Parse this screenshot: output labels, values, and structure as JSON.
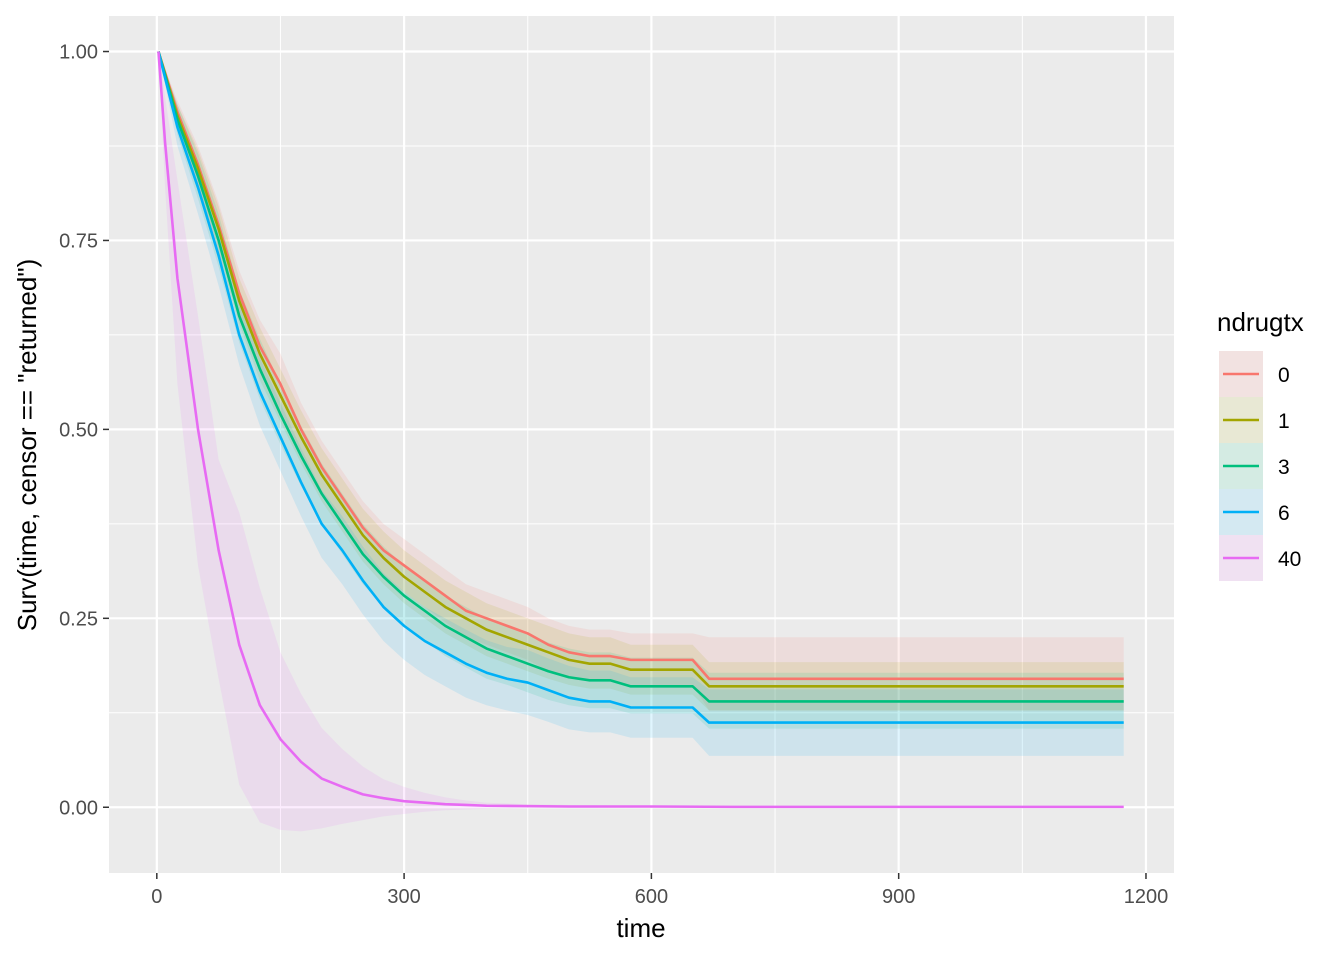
{
  "chart_data": {
    "type": "line",
    "xlabel": "time",
    "ylabel": "Surv(time, censor == \"returned\")",
    "xlim": [
      -58,
      1234
    ],
    "ylim": [
      -0.087,
      1.047
    ],
    "x_ticks": [
      0,
      300,
      600,
      900,
      1200
    ],
    "x_tick_labels": [
      "0",
      "300",
      "600",
      "900",
      "1200"
    ],
    "y_ticks": [
      0,
      0.25,
      0.5,
      0.75,
      1
    ],
    "y_tick_labels": [
      "0.00",
      "0.25",
      "0.50",
      "0.75",
      "1.00"
    ],
    "grid": true,
    "legend": {
      "title": "ndrugtx",
      "position": "right"
    },
    "series": [
      {
        "name": "0",
        "color": "#F8766D",
        "x": [
          2,
          25,
          50,
          75,
          100,
          125,
          150,
          175,
          200,
          225,
          250,
          275,
          300,
          325,
          350,
          375,
          400,
          425,
          450,
          475,
          500,
          525,
          550,
          575,
          600,
          625,
          650,
          670,
          700,
          800,
          900,
          1000,
          1100,
          1173
        ],
        "y": [
          1.0,
          0.92,
          0.85,
          0.77,
          0.68,
          0.61,
          0.56,
          0.5,
          0.45,
          0.41,
          0.37,
          0.34,
          0.32,
          0.3,
          0.28,
          0.26,
          0.25,
          0.24,
          0.23,
          0.215,
          0.205,
          0.2,
          0.2,
          0.195,
          0.195,
          0.195,
          0.195,
          0.17,
          0.17,
          0.17,
          0.17,
          0.17,
          0.17,
          0.17
        ],
        "lower": [
          1.0,
          0.905,
          0.825,
          0.74,
          0.65,
          0.575,
          0.52,
          0.465,
          0.415,
          0.375,
          0.335,
          0.305,
          0.285,
          0.265,
          0.245,
          0.225,
          0.215,
          0.205,
          0.195,
          0.18,
          0.172,
          0.167,
          0.167,
          0.162,
          0.162,
          0.162,
          0.162,
          0.128,
          0.128,
          0.128,
          0.128,
          0.128,
          0.128,
          0.128
        ],
        "upper": [
          1.0,
          0.935,
          0.875,
          0.8,
          0.71,
          0.645,
          0.6,
          0.535,
          0.485,
          0.445,
          0.405,
          0.375,
          0.355,
          0.335,
          0.315,
          0.295,
          0.285,
          0.275,
          0.265,
          0.25,
          0.24,
          0.235,
          0.235,
          0.23,
          0.23,
          0.23,
          0.23,
          0.225,
          0.225,
          0.225,
          0.225,
          0.225,
          0.225,
          0.225
        ]
      },
      {
        "name": "1",
        "color": "#A3A500",
        "x": [
          2,
          25,
          50,
          75,
          100,
          125,
          150,
          175,
          200,
          225,
          250,
          275,
          300,
          325,
          350,
          375,
          400,
          425,
          450,
          475,
          500,
          525,
          550,
          575,
          600,
          625,
          650,
          670,
          700,
          800,
          900,
          1000,
          1100,
          1173
        ],
        "y": [
          1.0,
          0.915,
          0.845,
          0.765,
          0.67,
          0.6,
          0.545,
          0.49,
          0.44,
          0.4,
          0.36,
          0.33,
          0.305,
          0.285,
          0.265,
          0.25,
          0.235,
          0.225,
          0.215,
          0.205,
          0.195,
          0.19,
          0.19,
          0.182,
          0.182,
          0.182,
          0.182,
          0.16,
          0.16,
          0.16,
          0.16,
          0.16,
          0.16,
          0.16
        ],
        "lower": [
          1.0,
          0.9,
          0.82,
          0.735,
          0.64,
          0.565,
          0.51,
          0.455,
          0.405,
          0.365,
          0.325,
          0.295,
          0.27,
          0.25,
          0.23,
          0.215,
          0.2,
          0.19,
          0.18,
          0.17,
          0.162,
          0.157,
          0.157,
          0.149,
          0.149,
          0.149,
          0.149,
          0.128,
          0.128,
          0.128,
          0.128,
          0.128,
          0.128,
          0.128
        ],
        "upper": [
          1.0,
          0.93,
          0.87,
          0.795,
          0.7,
          0.635,
          0.58,
          0.525,
          0.475,
          0.435,
          0.395,
          0.365,
          0.34,
          0.32,
          0.3,
          0.285,
          0.27,
          0.26,
          0.25,
          0.24,
          0.23,
          0.225,
          0.225,
          0.215,
          0.215,
          0.215,
          0.215,
          0.192,
          0.192,
          0.192,
          0.192,
          0.192,
          0.192,
          0.192
        ]
      },
      {
        "name": "3",
        "color": "#00BF7D",
        "x": [
          2,
          25,
          50,
          75,
          100,
          125,
          150,
          175,
          200,
          225,
          250,
          275,
          300,
          325,
          350,
          375,
          400,
          425,
          450,
          475,
          500,
          525,
          550,
          575,
          600,
          625,
          650,
          670,
          700,
          800,
          900,
          1000,
          1100,
          1173
        ],
        "y": [
          1.0,
          0.91,
          0.835,
          0.75,
          0.65,
          0.58,
          0.52,
          0.465,
          0.415,
          0.375,
          0.335,
          0.305,
          0.28,
          0.26,
          0.24,
          0.225,
          0.21,
          0.2,
          0.19,
          0.18,
          0.172,
          0.168,
          0.168,
          0.16,
          0.16,
          0.16,
          0.16,
          0.14,
          0.14,
          0.14,
          0.14,
          0.14,
          0.14,
          0.14
        ],
        "lower": [
          1.0,
          0.89,
          0.805,
          0.715,
          0.615,
          0.54,
          0.48,
          0.425,
          0.375,
          0.335,
          0.295,
          0.265,
          0.24,
          0.22,
          0.2,
          0.185,
          0.17,
          0.162,
          0.152,
          0.142,
          0.135,
          0.131,
          0.131,
          0.124,
          0.124,
          0.124,
          0.124,
          0.104,
          0.104,
          0.104,
          0.104,
          0.104,
          0.104,
          0.104
        ],
        "upper": [
          1.0,
          0.93,
          0.865,
          0.785,
          0.685,
          0.62,
          0.56,
          0.505,
          0.455,
          0.415,
          0.375,
          0.345,
          0.32,
          0.3,
          0.28,
          0.265,
          0.25,
          0.24,
          0.23,
          0.218,
          0.21,
          0.205,
          0.205,
          0.198,
          0.198,
          0.198,
          0.198,
          0.178,
          0.178,
          0.178,
          0.178,
          0.178,
          0.178,
          0.178
        ]
      },
      {
        "name": "6",
        "color": "#00B0F6",
        "x": [
          2,
          25,
          50,
          75,
          100,
          125,
          150,
          175,
          200,
          225,
          250,
          275,
          300,
          325,
          350,
          375,
          400,
          425,
          450,
          475,
          500,
          525,
          550,
          575,
          600,
          625,
          650,
          670,
          700,
          800,
          900,
          1000,
          1100,
          1173
        ],
        "y": [
          1.0,
          0.9,
          0.82,
          0.73,
          0.625,
          0.55,
          0.49,
          0.43,
          0.375,
          0.34,
          0.3,
          0.265,
          0.24,
          0.22,
          0.205,
          0.19,
          0.178,
          0.17,
          0.165,
          0.155,
          0.145,
          0.14,
          0.14,
          0.132,
          0.132,
          0.132,
          0.132,
          0.112,
          0.112,
          0.112,
          0.112,
          0.112,
          0.112,
          0.112
        ],
        "lower": [
          1.0,
          0.875,
          0.785,
          0.69,
          0.585,
          0.505,
          0.445,
          0.385,
          0.33,
          0.295,
          0.255,
          0.22,
          0.195,
          0.175,
          0.16,
          0.145,
          0.135,
          0.128,
          0.122,
          0.113,
          0.103,
          0.099,
          0.099,
          0.092,
          0.092,
          0.092,
          0.092,
          0.068,
          0.068,
          0.068,
          0.068,
          0.068,
          0.068,
          0.068
        ],
        "upper": [
          1.0,
          0.925,
          0.855,
          0.77,
          0.665,
          0.595,
          0.535,
          0.475,
          0.42,
          0.385,
          0.345,
          0.31,
          0.285,
          0.265,
          0.25,
          0.235,
          0.221,
          0.212,
          0.208,
          0.197,
          0.187,
          0.181,
          0.181,
          0.172,
          0.172,
          0.172,
          0.172,
          0.156,
          0.156,
          0.156,
          0.156,
          0.156,
          0.156,
          0.156
        ]
      },
      {
        "name": "40",
        "color": "#E76BF3",
        "x": [
          2,
          10,
          25,
          50,
          75,
          100,
          125,
          150,
          175,
          200,
          225,
          250,
          275,
          300,
          325,
          350,
          375,
          400,
          450,
          500,
          600,
          700,
          800,
          900,
          1000,
          1100,
          1173
        ],
        "y": [
          1.0,
          0.88,
          0.7,
          0.5,
          0.34,
          0.215,
          0.135,
          0.09,
          0.06,
          0.038,
          0.027,
          0.017,
          0.012,
          0.008,
          0.006,
          0.004,
          0.003,
          0.002,
          0.0015,
          0.001,
          0.001,
          0.0005,
          0.0005,
          0.0005,
          0.0005,
          0.0005,
          0.0005
        ],
        "lower": [
          1.0,
          0.82,
          0.56,
          0.32,
          0.17,
          0.03,
          -0.02,
          -0.03,
          -0.032,
          -0.028,
          -0.022,
          -0.017,
          -0.012,
          -0.009,
          -0.006,
          -0.004,
          -0.003,
          -0.002,
          -0.0012,
          -0.0008,
          -0.0006,
          -0.0004,
          -0.0004,
          -0.0004,
          -0.0004,
          -0.0004,
          -0.0004
        ],
        "upper": [
          1.0,
          0.94,
          0.83,
          0.65,
          0.46,
          0.39,
          0.29,
          0.205,
          0.15,
          0.105,
          0.077,
          0.054,
          0.037,
          0.027,
          0.019,
          0.013,
          0.009,
          0.006,
          0.004,
          0.003,
          0.002,
          0.0015,
          0.0015,
          0.0015,
          0.0015,
          0.0015,
          0.0015
        ]
      }
    ]
  }
}
